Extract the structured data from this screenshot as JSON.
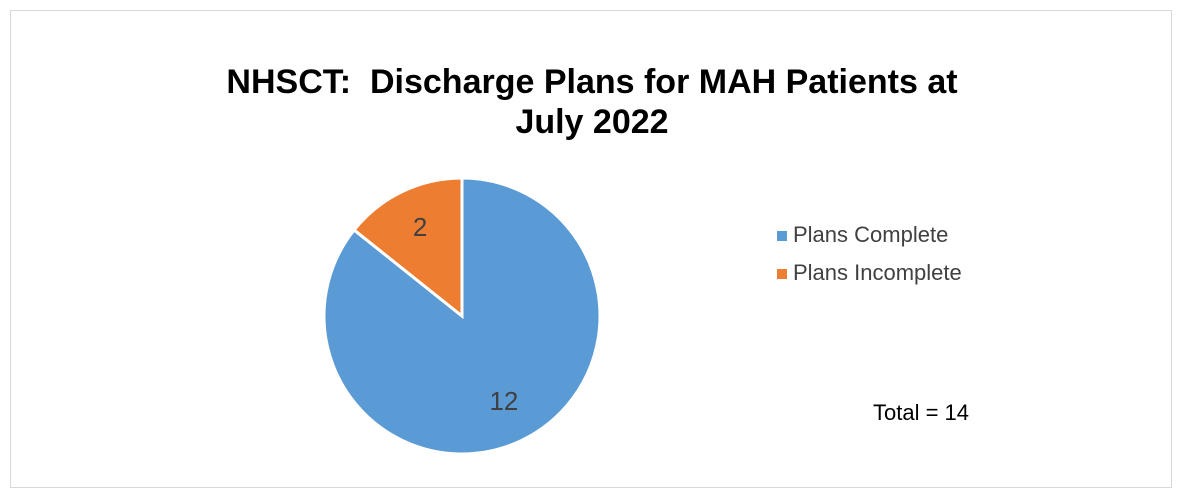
{
  "chart_data": {
    "type": "pie",
    "title": "NHSCT:  Discharge Plans for MAH Patients at July 2022",
    "categories": [
      "Plans Complete",
      "Plans Incomplete"
    ],
    "values": [
      12,
      2
    ],
    "colors": [
      "#5b9bd5",
      "#ed7d31"
    ],
    "legend": "right",
    "annotation": "Total = 14"
  }
}
